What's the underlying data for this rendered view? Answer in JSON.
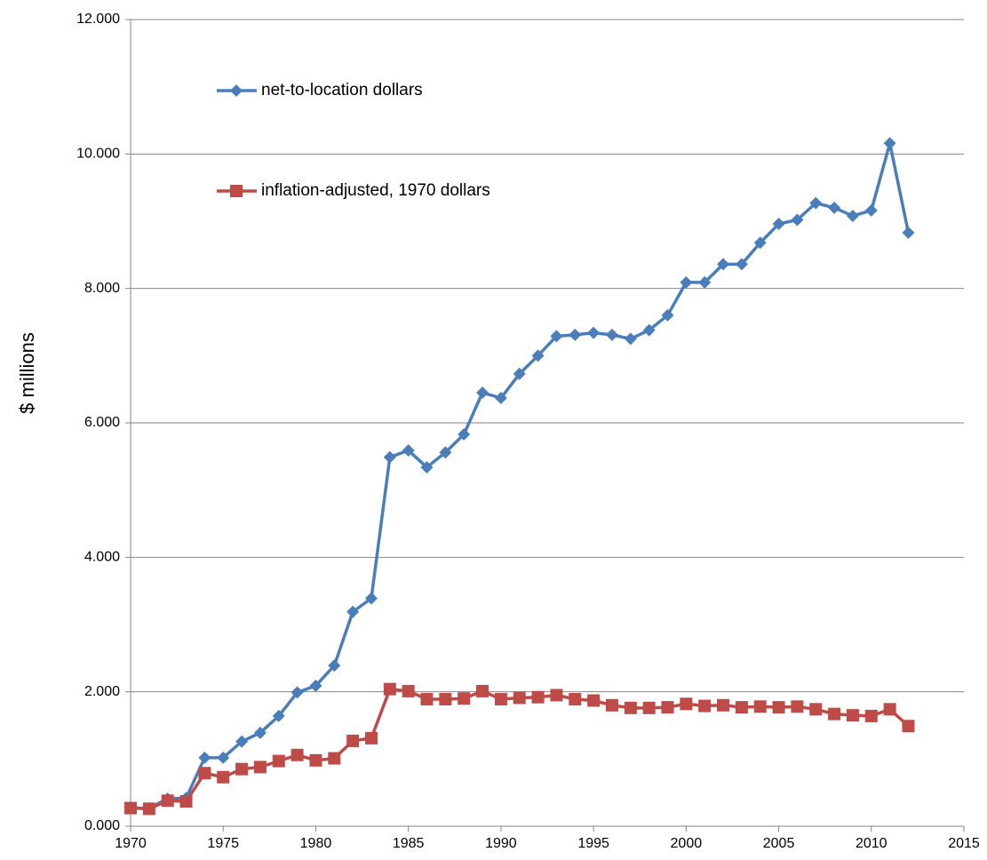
{
  "chart_data": {
    "type": "line",
    "y_label": "$ millions",
    "x": [
      1970,
      1971,
      1972,
      1973,
      1974,
      1975,
      1976,
      1977,
      1978,
      1979,
      1980,
      1981,
      1982,
      1983,
      1984,
      1985,
      1986,
      1987,
      1988,
      1989,
      1990,
      1991,
      1992,
      1993,
      1994,
      1995,
      1996,
      1997,
      1998,
      1999,
      2000,
      2001,
      2002,
      2003,
      2004,
      2005,
      2006,
      2007,
      2008,
      2009,
      2010,
      2011,
      2012
    ],
    "series": [
      {
        "name": "net-to-location dollars",
        "color": "#4a7ebb",
        "marker": "diamond",
        "values": [
          270,
          270,
          410,
          420,
          1020,
          1020,
          1260,
          1390,
          1640,
          1990,
          2090,
          2390,
          3190,
          3390,
          5490,
          5590,
          5340,
          5560,
          5830,
          6450,
          6370,
          6730,
          7000,
          7290,
          7310,
          7340,
          7310,
          7250,
          7380,
          7600,
          8090,
          8090,
          8360,
          8360,
          8680,
          8960,
          9020,
          9270,
          9200,
          9080,
          9160,
          10160,
          8830
        ]
      },
      {
        "name": "inflation-adjusted, 1970 dollars",
        "color": "#be4b48",
        "marker": "square",
        "values": [
          270,
          260,
          380,
          370,
          790,
          730,
          850,
          880,
          970,
          1060,
          980,
          1010,
          1270,
          1310,
          2040,
          2010,
          1890,
          1890,
          1900,
          2010,
          1890,
          1910,
          1920,
          1950,
          1890,
          1870,
          1800,
          1760,
          1760,
          1770,
          1820,
          1790,
          1800,
          1770,
          1780,
          1770,
          1780,
          1740,
          1670,
          1650,
          1640,
          1740,
          1490
        ]
      }
    ],
    "xlim": [
      1970,
      2015
    ],
    "xticks": [
      1970,
      1975,
      1980,
      1985,
      1990,
      1995,
      2000,
      2005,
      2010,
      2015
    ],
    "ylim": [
      0,
      12000
    ],
    "yticks": [
      {
        "value": 0,
        "label": "0.000"
      },
      {
        "value": 2000,
        "label": "2.000"
      },
      {
        "value": 4000,
        "label": "4.000"
      },
      {
        "value": 6000,
        "label": "6.000"
      },
      {
        "value": 8000,
        "label": "8.000"
      },
      {
        "value": 10000,
        "label": "10.000"
      },
      {
        "value": 12000,
        "label": "12.000"
      }
    ],
    "grid": true,
    "legend": "upper left"
  }
}
